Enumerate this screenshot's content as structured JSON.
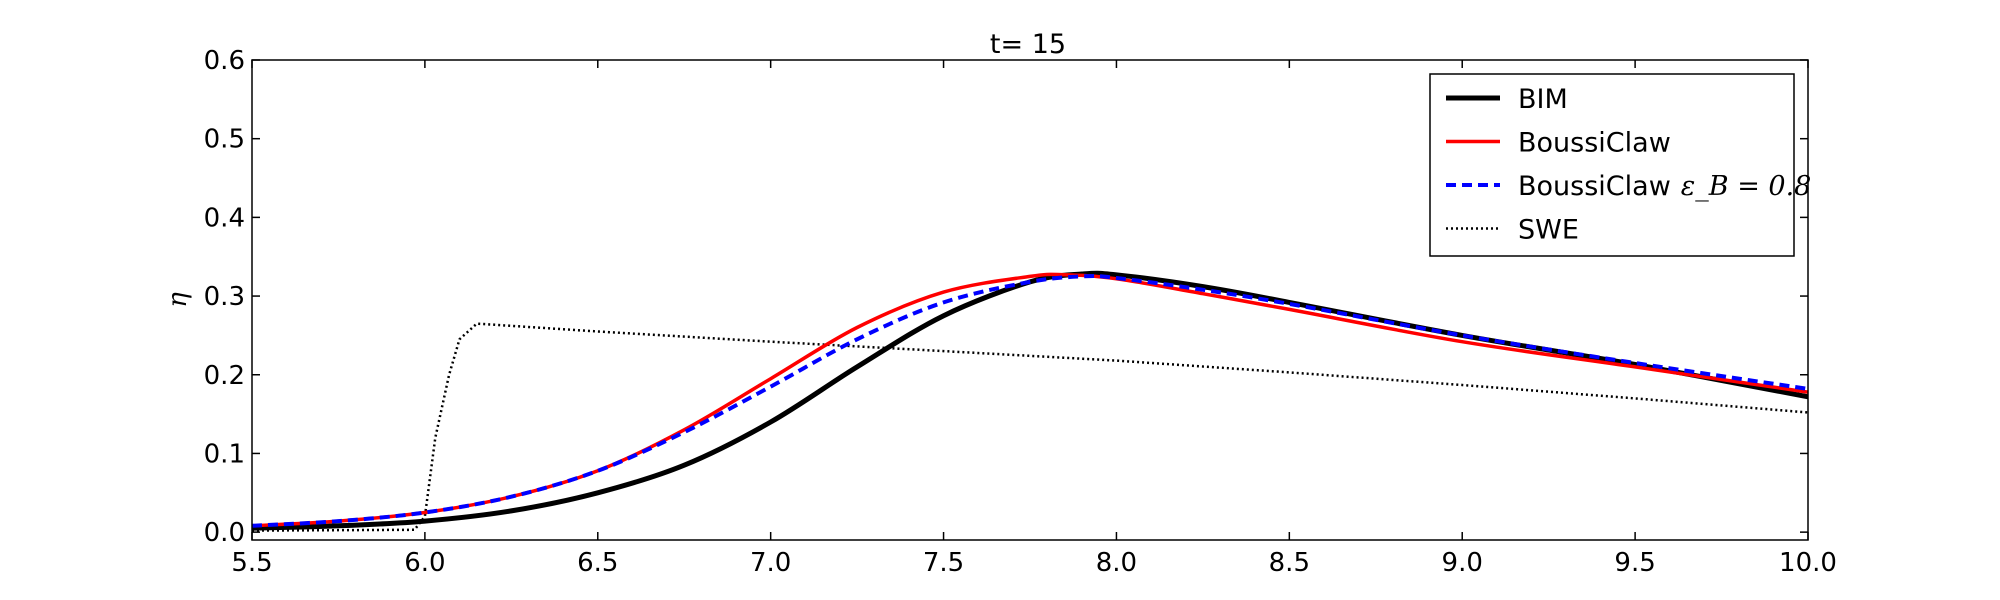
{
  "chart_data": {
    "type": "line",
    "title": "t= 15",
    "xlabel": "",
    "ylabel": "η",
    "xlim": [
      5.5,
      10.0
    ],
    "ylim": [
      -0.01,
      0.6
    ],
    "xticks": [
      "5.5",
      "6.0",
      "6.5",
      "7.0",
      "7.5",
      "8.0",
      "8.5",
      "9.0",
      "9.5",
      "10.0"
    ],
    "yticks": [
      "0.0",
      "0.1",
      "0.2",
      "0.3",
      "0.4",
      "0.5",
      "0.6"
    ],
    "grid": false,
    "legend_position": "top-right",
    "series": [
      {
        "name": "BIM",
        "label_math": "",
        "color": "#000000",
        "style": "solid-thick",
        "x": [
          5.5,
          5.75,
          6.0,
          6.25,
          6.5,
          6.75,
          7.0,
          7.25,
          7.5,
          7.75,
          7.9,
          8.0,
          8.25,
          8.5,
          9.0,
          9.5,
          10.0
        ],
        "y": [
          0.005,
          0.008,
          0.014,
          0.027,
          0.05,
          0.085,
          0.14,
          0.21,
          0.275,
          0.318,
          0.328,
          0.327,
          0.312,
          0.292,
          0.25,
          0.213,
          0.172
        ]
      },
      {
        "name": "BoussiClaw",
        "label_math": "",
        "color": "#ff0000",
        "style": "solid",
        "x": [
          5.5,
          5.75,
          6.0,
          6.25,
          6.5,
          6.75,
          7.0,
          7.25,
          7.5,
          7.75,
          7.85,
          8.0,
          8.25,
          8.5,
          9.0,
          9.5,
          10.0
        ],
        "y": [
          0.008,
          0.014,
          0.025,
          0.045,
          0.078,
          0.13,
          0.195,
          0.26,
          0.305,
          0.325,
          0.327,
          0.322,
          0.303,
          0.283,
          0.242,
          0.21,
          0.178
        ]
      },
      {
        "name": "BoussiClaw",
        "label_math": "ε_B = 0.8",
        "color": "#0000ff",
        "style": "dashed",
        "x": [
          5.5,
          5.75,
          6.0,
          6.25,
          6.5,
          6.75,
          7.0,
          7.25,
          7.5,
          7.75,
          7.9,
          8.0,
          8.25,
          8.5,
          9.0,
          9.5,
          10.0
        ],
        "y": [
          0.008,
          0.014,
          0.025,
          0.045,
          0.078,
          0.127,
          0.185,
          0.245,
          0.292,
          0.318,
          0.325,
          0.323,
          0.308,
          0.29,
          0.25,
          0.215,
          0.182
        ]
      },
      {
        "name": "SWE",
        "label_math": "",
        "color": "#000000",
        "style": "dotted",
        "x": [
          5.5,
          5.97,
          6.0,
          6.03,
          6.07,
          6.1,
          6.15,
          6.5,
          7.0,
          7.5,
          8.0,
          8.5,
          9.0,
          9.5,
          10.0
        ],
        "y": [
          0.002,
          0.003,
          0.02,
          0.12,
          0.2,
          0.245,
          0.265,
          0.255,
          0.242,
          0.23,
          0.218,
          0.203,
          0.187,
          0.17,
          0.152
        ]
      }
    ]
  }
}
